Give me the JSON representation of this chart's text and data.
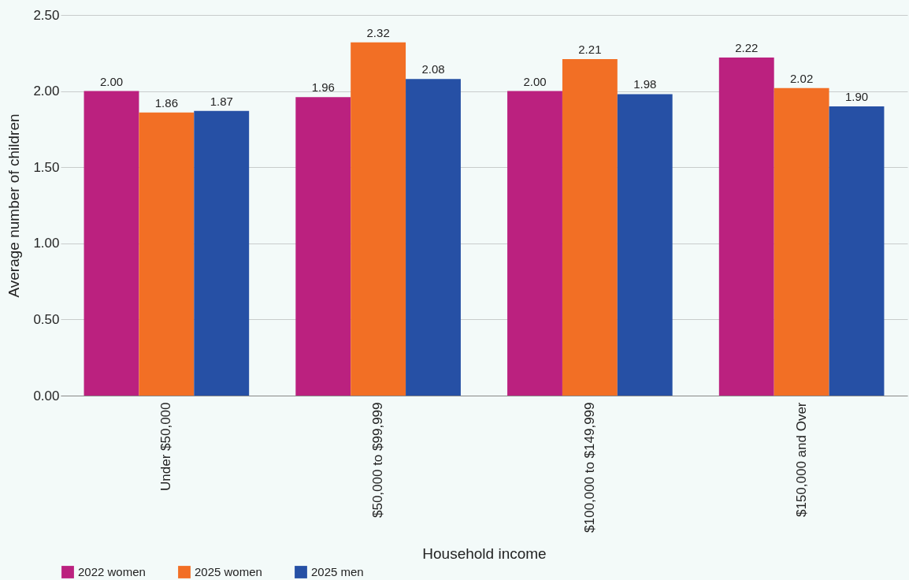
{
  "chart_data": {
    "type": "bar",
    "xlabel": "Household income",
    "ylabel": "Average number of children",
    "categories": [
      "Under $50,000",
      "$50,000 to $99,999",
      "$100,000 to $149,999",
      "$150,000 and Over"
    ],
    "series": [
      {
        "name": "2022 women",
        "color": "#bb217f",
        "values": [
          2.0,
          1.96,
          2.0,
          2.22
        ],
        "value_labels": [
          "2.00",
          "1.96",
          "2.00",
          "2.22"
        ]
      },
      {
        "name": "2025 women",
        "color": "#f26f25",
        "values": [
          1.86,
          2.32,
          2.21,
          2.02
        ],
        "value_labels": [
          "1.86",
          "2.32",
          "2.21",
          "2.02"
        ]
      },
      {
        "name": "2025 men",
        "color": "#2650a5",
        "values": [
          1.87,
          2.08,
          1.98,
          1.9
        ],
        "value_labels": [
          "1.87",
          "2.08",
          "1.98",
          "1.90"
        ]
      }
    ],
    "ylim": [
      0,
      2.5
    ],
    "yticks": [
      {
        "value": 0,
        "label": "0.00"
      },
      {
        "value": 0.5,
        "label": "0.50"
      },
      {
        "value": 1,
        "label": "1.00"
      },
      {
        "value": 1.5,
        "label": "1.50"
      },
      {
        "value": 2,
        "label": "2.00"
      },
      {
        "value": 2.5,
        "label": "2.50"
      }
    ],
    "grid": "y",
    "legend": "bottom"
  }
}
